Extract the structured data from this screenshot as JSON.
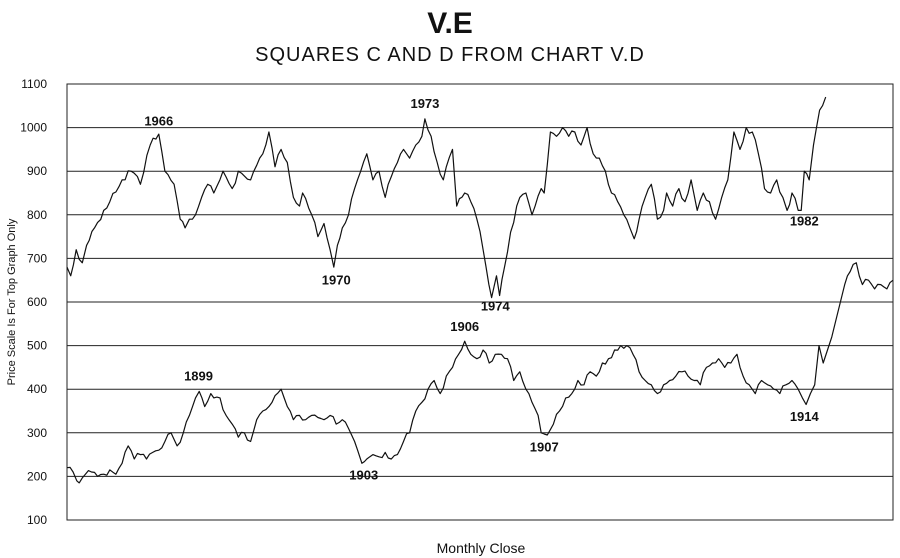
{
  "chart_data": {
    "type": "line",
    "title": "V.E",
    "subtitle": "SQUARES C AND D FROM CHART V.D",
    "xlabel": "Monthly Close",
    "ylabel": "Price Scale Is For Top Graph Only",
    "ylim": [
      100,
      1100
    ],
    "yticks": [
      100,
      200,
      300,
      400,
      500,
      600,
      700,
      800,
      900,
      1000,
      1100
    ],
    "grid": "horizontal",
    "series": [
      {
        "key": "top",
        "keypoints": [
          [
            0,
            680
          ],
          [
            0.6,
            660
          ],
          [
            1.5,
            720
          ],
          [
            2.5,
            690
          ],
          [
            3.2,
            730
          ],
          [
            4.5,
            770
          ],
          [
            6,
            810
          ],
          [
            7,
            830
          ],
          [
            9,
            880
          ],
          [
            10.5,
            900
          ],
          [
            12,
            870
          ],
          [
            13.6,
            960
          ],
          [
            15,
            985
          ],
          [
            16,
            900
          ],
          [
            17.5,
            870
          ],
          [
            18.5,
            790
          ],
          [
            19.3,
            770
          ],
          [
            20,
            790
          ],
          [
            21,
            800
          ],
          [
            22,
            840
          ],
          [
            23,
            870
          ],
          [
            24,
            850
          ],
          [
            25.5,
            900
          ],
          [
            27,
            860
          ],
          [
            28,
            900
          ],
          [
            30,
            880
          ],
          [
            32,
            940
          ],
          [
            33,
            990
          ],
          [
            34,
            910
          ],
          [
            35,
            950
          ],
          [
            36,
            920
          ],
          [
            37,
            840
          ],
          [
            38,
            820
          ],
          [
            38.5,
            850
          ],
          [
            40,
            800
          ],
          [
            41,
            750
          ],
          [
            42,
            780
          ],
          [
            43,
            720
          ],
          [
            43.6,
            680
          ],
          [
            44.2,
            730
          ],
          [
            45,
            770
          ],
          [
            46,
            800
          ],
          [
            47,
            860
          ],
          [
            48,
            900
          ],
          [
            49,
            940
          ],
          [
            50,
            880
          ],
          [
            51,
            900
          ],
          [
            52,
            840
          ],
          [
            52.5,
            870
          ],
          [
            54,
            920
          ],
          [
            55,
            950
          ],
          [
            56,
            930
          ],
          [
            57,
            960
          ],
          [
            58,
            980
          ],
          [
            58.5,
            1020
          ],
          [
            59.5,
            980
          ],
          [
            60.5,
            920
          ],
          [
            61.5,
            880
          ],
          [
            62,
            910
          ],
          [
            63,
            950
          ],
          [
            63.7,
            820
          ],
          [
            65,
            850
          ],
          [
            66,
            830
          ],
          [
            67,
            790
          ],
          [
            68,
            720
          ],
          [
            69.4,
            610
          ],
          [
            70.2,
            660
          ],
          [
            70.7,
            615
          ],
          [
            71.5,
            680
          ],
          [
            72.5,
            760
          ],
          [
            73.5,
            820
          ],
          [
            74,
            840
          ],
          [
            75,
            850
          ],
          [
            76,
            800
          ],
          [
            76.5,
            820
          ],
          [
            77.5,
            860
          ],
          [
            78,
            850
          ],
          [
            79,
            990
          ],
          [
            80,
            980
          ],
          [
            81,
            1000
          ],
          [
            82,
            980
          ],
          [
            83,
            990
          ],
          [
            84,
            960
          ],
          [
            85,
            1000
          ],
          [
            86,
            940
          ],
          [
            87,
            930
          ],
          [
            88,
            900
          ],
          [
            89,
            850
          ],
          [
            90,
            830
          ],
          [
            91,
            800
          ],
          [
            92,
            770
          ],
          [
            92.7,
            745
          ],
          [
            93.5,
            790
          ],
          [
            94.5,
            840
          ],
          [
            95.5,
            870
          ],
          [
            96.5,
            790
          ],
          [
            97.5,
            810
          ],
          [
            98,
            850
          ],
          [
            99,
            820
          ],
          [
            100,
            860
          ],
          [
            101,
            830
          ],
          [
            102,
            880
          ],
          [
            103,
            810
          ],
          [
            104,
            850
          ],
          [
            105,
            830
          ],
          [
            106,
            790
          ],
          [
            107,
            840
          ],
          [
            108,
            880
          ],
          [
            109,
            990
          ],
          [
            110,
            950
          ],
          [
            111,
            1000
          ],
          [
            112,
            990
          ],
          [
            113,
            940
          ],
          [
            114,
            860
          ],
          [
            115,
            850
          ],
          [
            116,
            880
          ],
          [
            117,
            840
          ],
          [
            117.7,
            810
          ],
          [
            118.5,
            850
          ],
          [
            119.5,
            810
          ],
          [
            120,
            810
          ],
          [
            120.5,
            900
          ],
          [
            121.3,
            880
          ],
          [
            122,
            960
          ],
          [
            123,
            1040
          ],
          [
            124,
            1070
          ]
        ]
      },
      {
        "key": "bottom",
        "keypoints": [
          [
            0,
            220
          ],
          [
            1,
            210
          ],
          [
            1.6,
            190
          ],
          [
            2,
            185
          ],
          [
            3,
            205
          ],
          [
            4,
            210
          ],
          [
            5,
            200
          ],
          [
            6,
            205
          ],
          [
            7,
            215
          ],
          [
            8,
            205
          ],
          [
            9,
            230
          ],
          [
            10,
            270
          ],
          [
            11,
            240
          ],
          [
            12,
            250
          ],
          [
            13,
            240
          ],
          [
            14,
            255
          ],
          [
            15,
            260
          ],
          [
            16,
            280
          ],
          [
            17,
            300
          ],
          [
            18,
            270
          ],
          [
            19,
            300
          ],
          [
            20,
            340
          ],
          [
            21,
            380
          ],
          [
            21.6,
            395
          ],
          [
            22.5,
            360
          ],
          [
            23.5,
            390
          ],
          [
            25,
            380
          ],
          [
            26,
            340
          ],
          [
            27,
            320
          ],
          [
            28,
            290
          ],
          [
            29,
            300
          ],
          [
            30,
            280
          ],
          [
            31,
            330
          ],
          [
            32,
            350
          ],
          [
            33,
            360
          ],
          [
            34,
            385
          ],
          [
            35,
            400
          ],
          [
            36,
            360
          ],
          [
            37,
            330
          ],
          [
            38,
            340
          ],
          [
            39,
            330
          ],
          [
            40,
            340
          ],
          [
            41,
            335
          ],
          [
            42,
            330
          ],
          [
            43,
            340
          ],
          [
            44,
            320
          ],
          [
            45,
            330
          ],
          [
            46,
            310
          ],
          [
            47,
            280
          ],
          [
            47.5,
            260
          ],
          [
            48.2,
            230
          ],
          [
            49,
            240
          ],
          [
            50,
            250
          ],
          [
            51,
            245
          ],
          [
            52,
            255
          ],
          [
            53,
            240
          ],
          [
            54,
            250
          ],
          [
            55,
            280
          ],
          [
            56,
            300
          ],
          [
            57,
            350
          ],
          [
            58,
            370
          ],
          [
            59,
            400
          ],
          [
            60,
            420
          ],
          [
            61,
            390
          ],
          [
            62,
            430
          ],
          [
            63,
            450
          ],
          [
            64,
            480
          ],
          [
            65,
            510
          ],
          [
            66,
            480
          ],
          [
            67,
            470
          ],
          [
            68,
            490
          ],
          [
            69,
            460
          ],
          [
            70,
            480
          ],
          [
            71,
            480
          ],
          [
            72,
            470
          ],
          [
            73,
            420
          ],
          [
            74,
            440
          ],
          [
            75,
            400
          ],
          [
            76,
            370
          ],
          [
            77,
            340
          ],
          [
            77.5,
            300
          ],
          [
            78.5,
            295
          ],
          [
            79.5,
            320
          ],
          [
            80.5,
            350
          ],
          [
            81.5,
            380
          ],
          [
            82.5,
            390
          ],
          [
            83.5,
            420
          ],
          [
            84.5,
            410
          ],
          [
            85.5,
            440
          ],
          [
            86.5,
            430
          ],
          [
            87.5,
            460
          ],
          [
            88.5,
            470
          ],
          [
            89.5,
            490
          ],
          [
            90.5,
            500
          ],
          [
            91.5,
            500
          ],
          [
            92.5,
            480
          ],
          [
            93.5,
            440
          ],
          [
            94.5,
            420
          ],
          [
            95.5,
            410
          ],
          [
            96.5,
            390
          ],
          [
            97.5,
            410
          ],
          [
            98.5,
            420
          ],
          [
            99.5,
            430
          ],
          [
            100.5,
            440
          ],
          [
            101.5,
            430
          ],
          [
            102.5,
            420
          ],
          [
            103.5,
            410
          ],
          [
            104.5,
            450
          ],
          [
            105.5,
            460
          ],
          [
            106.5,
            470
          ],
          [
            107.5,
            450
          ],
          [
            108.5,
            460
          ],
          [
            109.5,
            480
          ],
          [
            110.5,
            430
          ],
          [
            111.5,
            410
          ],
          [
            112.5,
            390
          ],
          [
            113.5,
            420
          ],
          [
            114.5,
            410
          ],
          [
            115.5,
            400
          ],
          [
            116.5,
            390
          ],
          [
            117.5,
            410
          ],
          [
            118.5,
            420
          ],
          [
            119.5,
            400
          ],
          [
            120.2,
            380
          ],
          [
            120.8,
            365
          ],
          [
            121.5,
            390
          ],
          [
            122.2,
            410
          ],
          [
            122.9,
            500
          ],
          [
            123.6,
            460
          ],
          [
            124.3,
            490
          ],
          [
            125,
            520
          ],
          [
            125.7,
            560
          ],
          [
            126.4,
            600
          ],
          [
            127.1,
            640
          ],
          [
            128,
            670
          ],
          [
            129,
            690
          ],
          [
            130,
            640
          ],
          [
            131,
            650
          ],
          [
            132,
            630
          ],
          [
            133,
            640
          ],
          [
            134,
            630
          ],
          [
            135,
            650
          ]
        ]
      }
    ],
    "annotations": [
      {
        "text": "1966",
        "x": 15,
        "y": 1005
      },
      {
        "text": "1970",
        "x": 44,
        "y": 640
      },
      {
        "text": "1973",
        "x": 58.5,
        "y": 1045
      },
      {
        "text": "1974",
        "x": 70,
        "y": 580
      },
      {
        "text": "1982",
        "x": 120.5,
        "y": 775
      },
      {
        "text": "1899",
        "x": 21.5,
        "y": 420
      },
      {
        "text": "1903",
        "x": 48.5,
        "y": 193
      },
      {
        "text": "1906",
        "x": 65,
        "y": 533
      },
      {
        "text": "1907",
        "x": 78,
        "y": 257
      },
      {
        "text": "1914",
        "x": 120.5,
        "y": 327
      }
    ]
  }
}
